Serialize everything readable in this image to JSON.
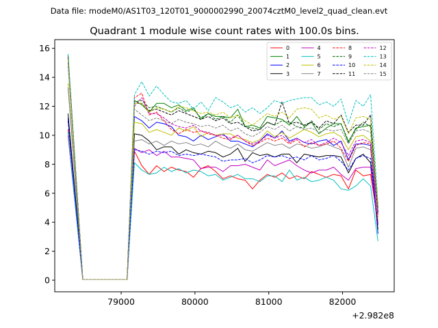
{
  "suptitle": "Data file: modeM0/AS1T03_120T01_9000002990_20074cztM0_level2_quad_clean.evt",
  "chart_data": {
    "type": "line",
    "title": "Quadrant 1 module wise count rates with 100.0s bins.",
    "xlabel": "",
    "ylabel": "",
    "x_offset_label": "+2.982e8",
    "x_offset_value": 298200000,
    "xlim": [
      78100,
      82700
    ],
    "ylim": [
      -0.8,
      16.6
    ],
    "x_ticks": [
      79000,
      80000,
      81000,
      82000
    ],
    "y_ticks": [
      0,
      2,
      4,
      6,
      8,
      10,
      12,
      14,
      16
    ],
    "grid": false,
    "legend": {
      "placement": "top-right",
      "columns": 4
    },
    "x": [
      78280,
      78480,
      78680,
      78880,
      79080,
      79180,
      79280,
      79380,
      79480,
      79580,
      79680,
      79780,
      79880,
      79980,
      80080,
      80180,
      80280,
      80380,
      80480,
      80580,
      80680,
      80780,
      80880,
      80980,
      81080,
      81180,
      81280,
      81380,
      81480,
      81580,
      81680,
      81780,
      81880,
      81980,
      82080,
      82180,
      82280,
      82380,
      82480
    ],
    "series": [
      {
        "name": "0",
        "color": "#ff0000",
        "dash": "solid",
        "values": [
          10.4,
          0.05,
          0.05,
          0.05,
          0.05,
          8.9,
          7.9,
          7.3,
          7.9,
          7.5,
          7.8,
          7.6,
          7.5,
          7.1,
          7.7,
          7.9,
          7.5,
          7.0,
          7.2,
          7.0,
          6.9,
          6.3,
          6.9,
          7.3,
          7.1,
          7.4,
          7.0,
          7.2,
          7.0,
          7.5,
          7.3,
          7.1,
          7.3,
          7.2,
          6.3,
          7.6,
          7.2,
          7.3,
          4.0
        ]
      },
      {
        "name": "1",
        "color": "#008000",
        "dash": "solid",
        "values": [
          15.6,
          0.05,
          0.05,
          0.05,
          0.05,
          12.4,
          12.1,
          11.6,
          12.2,
          12.2,
          11.9,
          12.1,
          11.7,
          11.9,
          11.1,
          11.5,
          11.3,
          11.3,
          11.2,
          11.8,
          10.6,
          10.7,
          10.5,
          11.3,
          11.2,
          11.1,
          10.7,
          11.3,
          10.6,
          10.9,
          10.1,
          10.5,
          10.8,
          10.8,
          9.5,
          10.5,
          10.6,
          10.7,
          5.0
        ]
      },
      {
        "name": "2",
        "color": "#0000ff",
        "dash": "solid",
        "values": [
          11.2,
          0.05,
          0.05,
          0.05,
          0.05,
          11.3,
          11.0,
          10.5,
          10.9,
          10.8,
          10.6,
          10.0,
          9.9,
          9.6,
          10.0,
          9.7,
          9.9,
          10.1,
          9.6,
          9.6,
          9.4,
          9.2,
          9.6,
          10.1,
          9.8,
          10.3,
          9.6,
          9.8,
          9.5,
          9.4,
          9.6,
          9.7,
          9.3,
          9.6,
          8.3,
          9.4,
          9.4,
          9.3,
          3.2
        ]
      },
      {
        "name": "3",
        "color": "#000000",
        "dash": "solid",
        "values": [
          11.5,
          0.05,
          0.05,
          0.05,
          0.05,
          10.1,
          10.0,
          9.6,
          9.0,
          9.2,
          9.2,
          8.7,
          9.0,
          8.8,
          8.7,
          8.9,
          8.8,
          8.5,
          8.7,
          9.1,
          8.2,
          8.8,
          8.6,
          8.7,
          8.5,
          8.7,
          8.7,
          8.1,
          8.7,
          8.6,
          8.5,
          8.6,
          8.6,
          8.5,
          7.4,
          8.4,
          8.7,
          8.1,
          3.5
        ]
      },
      {
        "name": "4",
        "color": "#bf00bf",
        "dash": "solid",
        "values": [
          10.0,
          0.05,
          0.05,
          0.05,
          0.05,
          9.1,
          8.8,
          9.0,
          8.6,
          8.9,
          8.5,
          8.5,
          8.4,
          8.3,
          7.7,
          7.8,
          7.8,
          7.5,
          7.9,
          7.9,
          8.0,
          7.8,
          7.6,
          8.3,
          7.9,
          8.1,
          8.3,
          7.9,
          7.6,
          7.4,
          7.6,
          7.6,
          7.8,
          7.3,
          6.9,
          7.7,
          7.8,
          7.8,
          3.8
        ]
      },
      {
        "name": "5",
        "color": "#00bfbf",
        "dash": "solid",
        "values": [
          10.2,
          0.05,
          0.05,
          0.05,
          0.05,
          8.1,
          7.6,
          7.3,
          7.4,
          7.8,
          7.5,
          7.7,
          7.4,
          7.6,
          7.5,
          7.2,
          7.3,
          6.9,
          7.1,
          7.3,
          7.0,
          7.0,
          6.8,
          7.2,
          7.2,
          6.8,
          7.6,
          6.9,
          7.1,
          6.8,
          6.9,
          7.1,
          6.9,
          6.3,
          6.2,
          6.5,
          7.0,
          6.5,
          2.7
        ]
      },
      {
        "name": "6",
        "color": "#bfbf00",
        "dash": "solid",
        "values": [
          13.6,
          0.05,
          0.05,
          0.05,
          0.05,
          10.9,
          10.8,
          10.2,
          10.4,
          10.2,
          10.0,
          10.5,
          10.3,
          10.6,
          9.9,
          10.2,
          10.0,
          10.1,
          10.1,
          9.8,
          9.7,
          9.5,
          9.7,
          10.3,
          9.9,
          10.2,
          9.8,
          10.1,
          10.4,
          10.2,
          9.9,
          10.1,
          10.2,
          9.9,
          9.0,
          9.9,
          10.0,
          9.6,
          4.2
        ]
      },
      {
        "name": "7",
        "color": "#808080",
        "dash": "solid",
        "values": [
          13.3,
          0.05,
          0.05,
          0.05,
          0.05,
          9.6,
          9.7,
          9.4,
          9.6,
          9.3,
          9.6,
          9.4,
          9.5,
          9.3,
          9.4,
          9.2,
          9.6,
          9.3,
          9.1,
          9.4,
          9.0,
          8.9,
          9.2,
          9.5,
          9.3,
          9.4,
          9.1,
          9.4,
          9.3,
          9.1,
          9.2,
          9.4,
          9.2,
          9.0,
          7.8,
          9.1,
          9.2,
          9.0,
          4.5
        ]
      },
      {
        "name": "8",
        "color": "#ff0000",
        "dash": "dashed",
        "values": [
          15.5,
          0.05,
          0.05,
          0.05,
          0.05,
          12.6,
          12.9,
          11.4,
          11.6,
          11.0,
          10.4,
          10.1,
          10.4,
          10.2,
          10.3,
          10.1,
          10.0,
          9.8,
          9.7,
          10.0,
          9.6,
          9.3,
          9.5,
          9.8,
          9.6,
          9.8,
          9.4,
          9.7,
          9.2,
          9.5,
          9.3,
          9.4,
          9.6,
          9.1,
          8.2,
          9.3,
          9.5,
          9.4,
          4.4
        ]
      },
      {
        "name": "9",
        "color": "#006400",
        "dash": "dashed",
        "values": [
          15.3,
          0.05,
          0.05,
          0.05,
          0.05,
          12.3,
          12.4,
          11.9,
          12.0,
          11.8,
          11.6,
          11.9,
          11.6,
          11.8,
          11.2,
          11.5,
          11.1,
          11.3,
          10.9,
          11.4,
          10.6,
          10.5,
          10.4,
          10.9,
          10.7,
          11.0,
          10.9,
          10.6,
          10.5,
          11.0,
          10.4,
          10.8,
          10.6,
          10.8,
          9.6,
          10.4,
          10.9,
          10.6,
          4.9
        ]
      },
      {
        "name": "10",
        "color": "#0000ff",
        "dash": "dashed",
        "values": [
          11.0,
          0.05,
          0.05,
          0.05,
          0.05,
          9.0,
          8.9,
          8.7,
          8.9,
          8.8,
          8.9,
          8.6,
          8.7,
          8.6,
          8.7,
          8.6,
          8.5,
          8.2,
          8.3,
          8.3,
          8.4,
          8.1,
          8.3,
          8.6,
          8.5,
          8.6,
          8.4,
          8.5,
          8.3,
          8.6,
          8.3,
          8.4,
          8.6,
          8.2,
          7.6,
          8.4,
          8.6,
          8.4,
          3.8
        ]
      },
      {
        "name": "11",
        "color": "#000000",
        "dash": "dashed",
        "values": [
          15.4,
          0.05,
          0.05,
          0.05,
          0.05,
          12.2,
          12.2,
          11.7,
          11.8,
          11.6,
          11.4,
          11.7,
          11.5,
          11.3,
          11.1,
          11.3,
          11.0,
          11.2,
          10.8,
          10.9,
          10.6,
          10.3,
          10.4,
          10.9,
          10.7,
          12.3,
          10.8,
          10.9,
          10.7,
          10.9,
          10.5,
          11.0,
          10.8,
          11.4,
          10.2,
          10.7,
          10.7,
          11.4,
          4.7
        ]
      },
      {
        "name": "12",
        "color": "#bf00bf",
        "dash": "dashed",
        "values": [
          15.0,
          0.05,
          0.05,
          0.05,
          0.05,
          12.0,
          12.6,
          11.5,
          11.5,
          11.2,
          10.8,
          10.6,
          10.5,
          10.7,
          10.3,
          10.2,
          10.0,
          10.0,
          9.8,
          10.0,
          9.6,
          9.4,
          9.6,
          10.0,
          9.8,
          10.0,
          9.5,
          9.8,
          9.5,
          9.7,
          9.3,
          9.5,
          9.8,
          9.5,
          8.6,
          9.6,
          9.7,
          9.5,
          4.6
        ]
      },
      {
        "name": "13",
        "color": "#00bfbf",
        "dash": "dashed",
        "values": [
          15.6,
          0.05,
          0.05,
          0.05,
          0.05,
          12.8,
          13.7,
          12.7,
          13.4,
          12.8,
          12.3,
          12.2,
          12.4,
          11.8,
          12.3,
          11.7,
          12.6,
          12.3,
          11.9,
          12.1,
          11.6,
          11.9,
          11.5,
          11.9,
          12.4,
          12.2,
          12.4,
          12.5,
          12.6,
          12.6,
          12.1,
          12.3,
          12.0,
          12.5,
          10.8,
          12.4,
          12.0,
          12.8,
          5.3
        ]
      },
      {
        "name": "14",
        "color": "#bfbf00",
        "dash": "dashed",
        "values": [
          15.2,
          0.05,
          0.05,
          0.05,
          0.05,
          12.2,
          12.2,
          11.6,
          11.9,
          11.8,
          11.6,
          12.0,
          11.9,
          11.7,
          11.5,
          11.6,
          11.4,
          11.6,
          11.2,
          11.4,
          11.0,
          10.7,
          11.1,
          11.5,
          11.3,
          11.6,
          11.2,
          11.8,
          11.9,
          11.8,
          11.2,
          11.4,
          11.1,
          11.3,
          10.1,
          11.2,
          11.3,
          11.1,
          5.2
        ]
      },
      {
        "name": "15",
        "color": "#808080",
        "dash": "dashed",
        "values": [
          14.8,
          0.05,
          0.05,
          0.05,
          0.05,
          11.8,
          11.4,
          11.0,
          11.2,
          11.0,
          10.8,
          11.1,
          10.9,
          10.8,
          10.6,
          10.7,
          10.5,
          10.7,
          10.3,
          10.5,
          10.1,
          9.9,
          10.2,
          10.6,
          10.4,
          10.7,
          10.3,
          10.6,
          10.4,
          10.5,
          10.2,
          10.4,
          10.3,
          10.4,
          9.4,
          10.3,
          10.4,
          10.2,
          4.8
        ]
      }
    ]
  }
}
